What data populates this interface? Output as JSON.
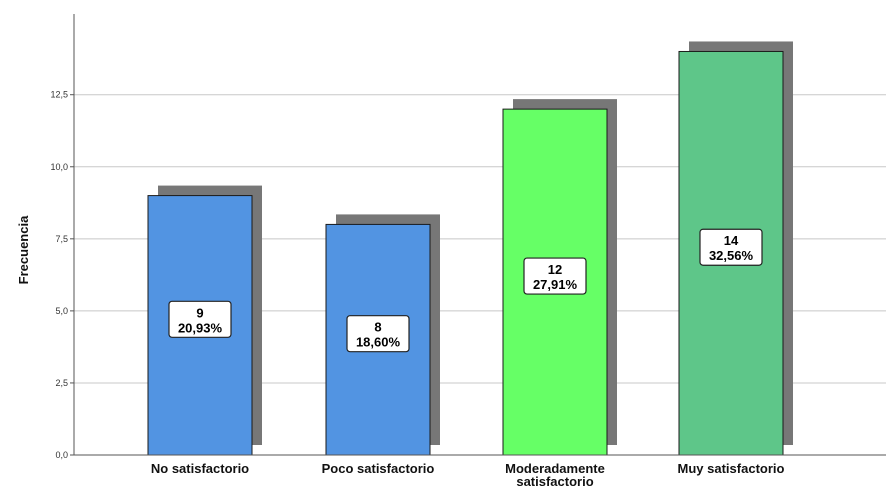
{
  "chart_data": {
    "type": "bar",
    "title": "",
    "xlabel": "",
    "ylabel": "Frecuencia",
    "ylim": [
      0,
      15.3
    ],
    "yticks": [
      "0,0",
      "2,5",
      "5,0",
      "7,5",
      "10,0",
      "12,5"
    ],
    "grid": true,
    "legend": "none",
    "categories": [
      [
        "No satisfactorio"
      ],
      [
        "Poco satisfactorio"
      ],
      [
        "Moderadamente",
        "satisfactorio"
      ],
      [
        "Muy  satisfactorio"
      ]
    ],
    "values": [
      9,
      8,
      12,
      14
    ],
    "data_labels": [
      {
        "count": "9",
        "percent": "20,93%"
      },
      {
        "count": "8",
        "percent": "18,60%"
      },
      {
        "count": "12",
        "percent": "27,91%"
      },
      {
        "count": "14",
        "percent": "32,56%"
      }
    ],
    "colors": [
      "#5294e2",
      "#5294e2",
      "#66ff66",
      "#5ec689"
    ],
    "shadow_color": "#777777",
    "grid_color": "#c8c8c8"
  }
}
